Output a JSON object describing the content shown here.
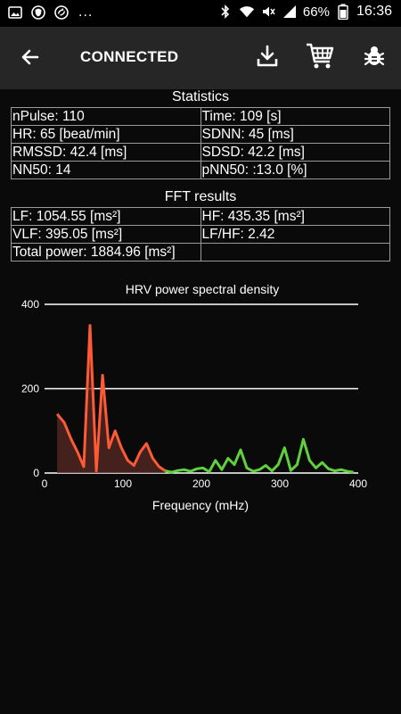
{
  "status_bar": {
    "left_icons": [
      "image-notification-icon",
      "shield-notification-icon",
      "sync-notification-icon"
    ],
    "more_indicator": "...",
    "right_icons": [
      "bluetooth-icon",
      "wifi-icon",
      "mute-icon",
      "signal-icon"
    ],
    "battery_percent": "66%",
    "time": "16:36"
  },
  "app_bar": {
    "title": "CONNECTED",
    "back_icon": "arrow-back-icon",
    "actions": [
      "download-icon",
      "cart-icon",
      "bug-icon"
    ]
  },
  "statistics": {
    "title": "Statistics",
    "rows": [
      [
        "nPulse: 110",
        "Time: 109 [s]"
      ],
      [
        "HR: 65 [beat/min]",
        "SDNN: 45 [ms]"
      ],
      [
        "RMSSD: 42.4 [ms]",
        "SDSD: 42.2 [ms]"
      ],
      [
        "NN50: 14",
        "pNN50: :13.0 [%]"
      ]
    ]
  },
  "fft": {
    "title": "FFT results",
    "rows": [
      [
        "LF: 1054.55 [ms²]",
        "HF: 435.35 [ms²]"
      ],
      [
        "VLF: 395.05 [ms²]",
        "LF/HF: 2.42"
      ],
      [
        "Total power: 1884.96 [ms²]",
        ""
      ]
    ]
  },
  "chart_data": {
    "type": "line",
    "title": "HRV power spectral density",
    "xlabel": "Frequency (mHz)",
    "ylabel": "",
    "xlim": [
      0,
      400
    ],
    "ylim": [
      0,
      400
    ],
    "x_ticks": [
      "0",
      "100",
      "200",
      "300",
      "400"
    ],
    "y_ticks": [
      "0",
      "200",
      "400"
    ],
    "grid": "horizontal",
    "colors": {
      "lf": "#ff5a36",
      "hf": "#5ed13c",
      "fill": "#5a2a24",
      "grid": "#ffffff"
    },
    "series": [
      {
        "band": "lf",
        "x": [
          16,
          25,
          34,
          42,
          50,
          58,
          66,
          74,
          82,
          90,
          98,
          106,
          114,
          122,
          130,
          138,
          146,
          154
        ],
        "y": [
          140,
          120,
          80,
          50,
          15,
          350,
          5,
          232,
          60,
          100,
          60,
          30,
          18,
          50,
          70,
          35,
          15,
          5
        ]
      },
      {
        "band": "hf",
        "x": [
          154,
          162,
          170,
          178,
          186,
          194,
          202,
          210,
          218,
          226,
          234,
          242,
          250,
          258,
          266,
          274,
          282,
          290,
          298,
          306,
          314,
          322,
          330,
          338,
          346,
          354,
          362,
          370,
          378,
          386,
          394
        ],
        "y": [
          5,
          2,
          6,
          8,
          4,
          10,
          12,
          3,
          30,
          8,
          35,
          20,
          55,
          12,
          4,
          8,
          18,
          5,
          20,
          60,
          6,
          20,
          80,
          30,
          12,
          25,
          10,
          5,
          8,
          4,
          2
        ]
      }
    ]
  }
}
